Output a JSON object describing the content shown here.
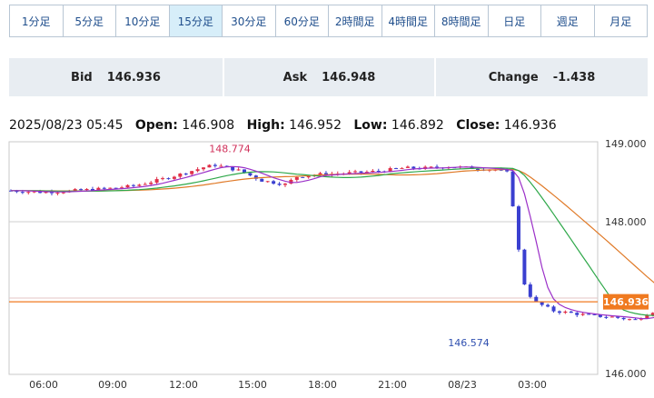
{
  "timeframes": [
    {
      "label": "1分足",
      "active": false
    },
    {
      "label": "5分足",
      "active": false
    },
    {
      "label": "10分足",
      "active": false
    },
    {
      "label": "15分足",
      "active": true
    },
    {
      "label": "30分足",
      "active": false
    },
    {
      "label": "60分足",
      "active": false
    },
    {
      "label": "2時間足",
      "active": false
    },
    {
      "label": "4時間足",
      "active": false
    },
    {
      "label": "8時間足",
      "active": false
    },
    {
      "label": "日足",
      "active": false
    },
    {
      "label": "週足",
      "active": false
    },
    {
      "label": "月足",
      "active": false
    }
  ],
  "quote": {
    "bid_label": "Bid",
    "bid_value": "146.936",
    "ask_label": "Ask",
    "ask_value": "146.948",
    "change_label": "Change",
    "change_value": "-1.438"
  },
  "ohlc": {
    "datetime": "2025/08/23 05:45",
    "open_label": "Open:",
    "open": "146.908",
    "high_label": "High:",
    "high": "146.952",
    "low_label": "Low:",
    "low": "146.892",
    "close_label": "Close:",
    "close": "146.936"
  },
  "chart_data": {
    "type": "candlestick",
    "y_ticks": [
      "149.000",
      "148.000",
      "146.000"
    ],
    "ylim": [
      146.0,
      149.0
    ],
    "x_ticks": [
      "06:00",
      "09:00",
      "12:00",
      "15:00",
      "18:00",
      "21:00",
      "08/23",
      "03:00"
    ],
    "last_price_label": "146.936",
    "annotations": [
      {
        "text": "148.774",
        "value": 148.774,
        "x": "13:00"
      },
      {
        "text": "146.574",
        "value": 146.574,
        "x": "01:15"
      }
    ],
    "up_color": "#e0304a",
    "down_color": "#3a3fd0",
    "price_line_color": "#f07a20",
    "ma_short_color": "#9b30c8",
    "ma_mid_color": "#2fa84a",
    "ma_long_color": "#e07a28"
  }
}
